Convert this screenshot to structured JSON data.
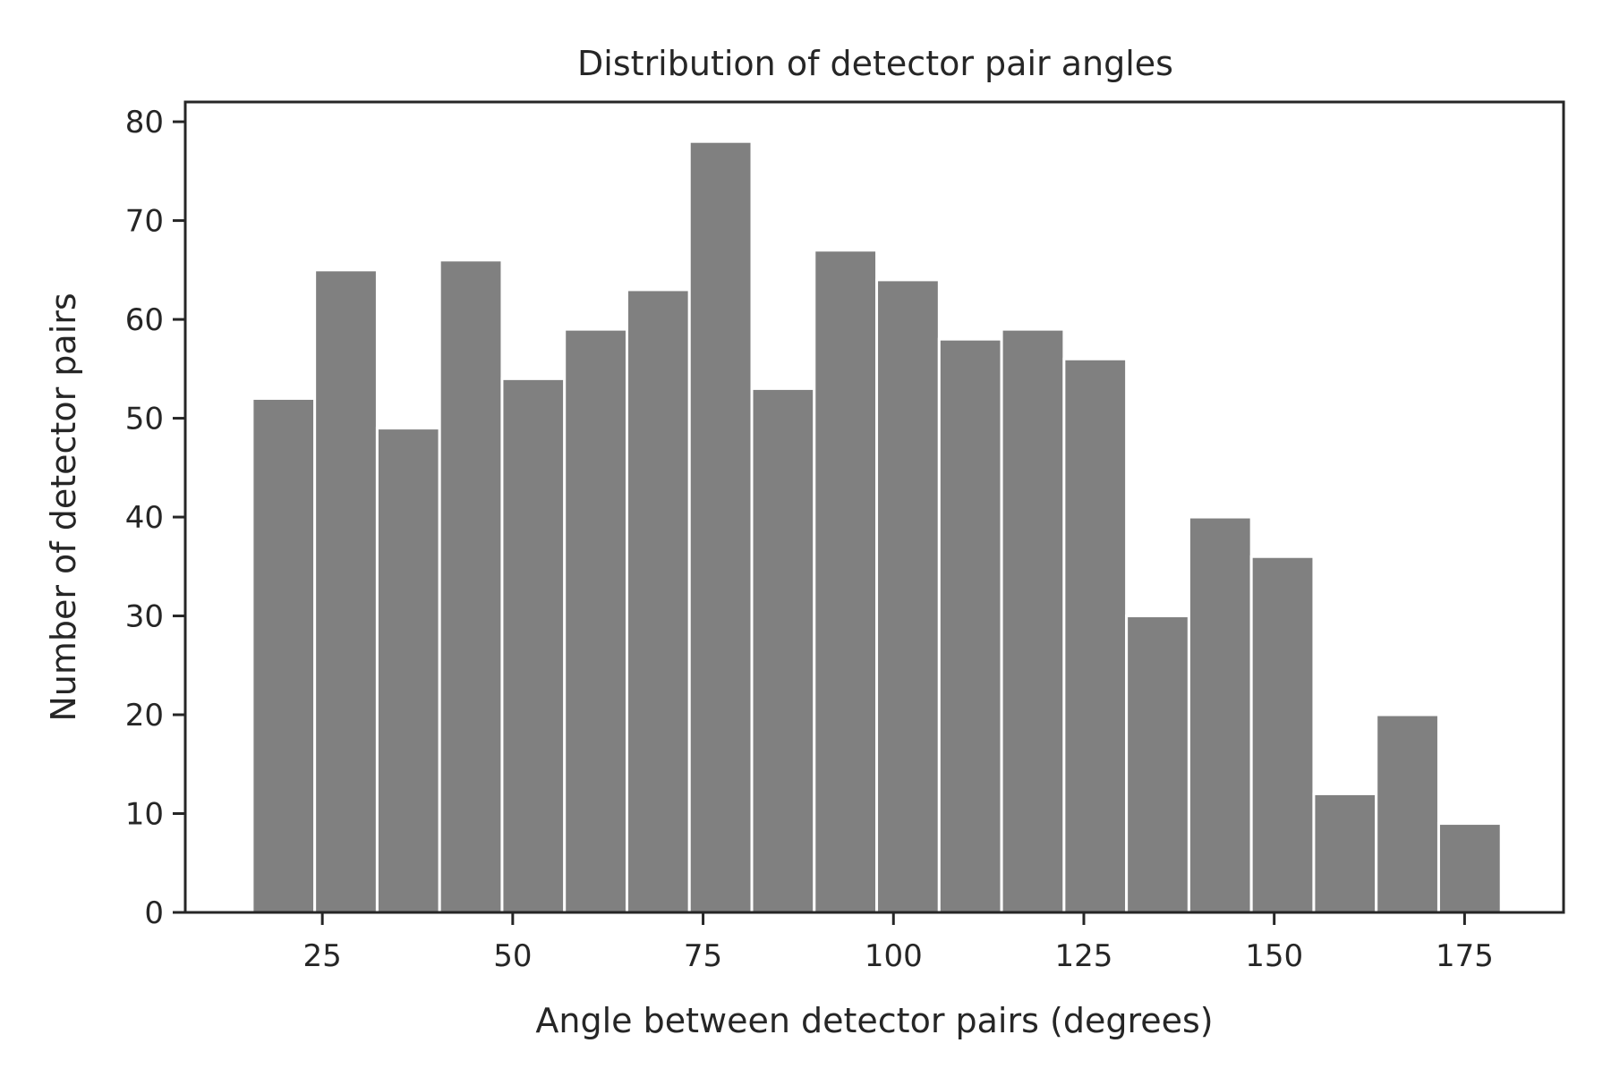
{
  "chart_data": {
    "type": "bar",
    "title": "Distribution of detector pair angles",
    "xlabel": "Angle between detector pairs (degrees)",
    "ylabel": "Number of detector pairs",
    "bin_edges": [
      15.8,
      24.0,
      32.2,
      40.4,
      48.6,
      56.8,
      65.0,
      73.2,
      81.4,
      89.6,
      97.8,
      106.0,
      114.2,
      122.4,
      130.6,
      138.8,
      147.0,
      155.2,
      163.4,
      171.6,
      179.8
    ],
    "values": [
      52,
      65,
      49,
      66,
      54,
      59,
      63,
      78,
      53,
      67,
      64,
      58,
      59,
      56,
      30,
      40,
      36,
      12,
      20,
      9
    ],
    "xlim": [
      7,
      188
    ],
    "ylim": [
      0,
      82
    ],
    "xticks": [
      25,
      50,
      75,
      100,
      125,
      150,
      175
    ],
    "yticks": [
      0,
      10,
      20,
      30,
      40,
      50,
      60,
      70,
      80
    ],
    "bar_color": "#808080",
    "grid": false
  }
}
